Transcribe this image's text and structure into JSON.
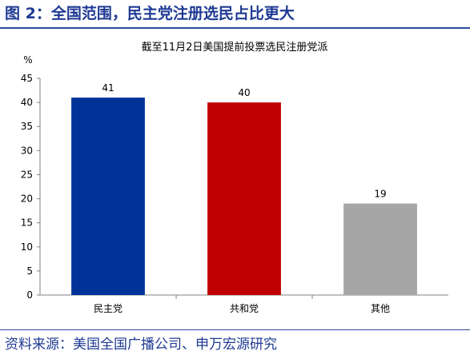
{
  "figure_title": "图 2：全国范围，民主党注册选民占比更大",
  "source_note": "资料来源：美国全国广播公司、申万宏源研究",
  "colors": {
    "bars": [
      "#003399",
      "#C00000",
      "#A6A6A6"
    ],
    "frame": "#2a4a9e"
  },
  "chart_data": {
    "type": "bar",
    "title": "截至11月2日美国提前投票选民注册党派",
    "ylabel": "%",
    "xlabel": "",
    "categories": [
      "民主党",
      "共和党",
      "其他"
    ],
    "values": [
      41,
      40,
      19
    ],
    "ylim": [
      0,
      45
    ],
    "yticks": [
      0,
      5,
      10,
      15,
      20,
      25,
      30,
      35,
      40,
      45
    ],
    "grid": false,
    "legend": "none",
    "data_labels": true
  }
}
